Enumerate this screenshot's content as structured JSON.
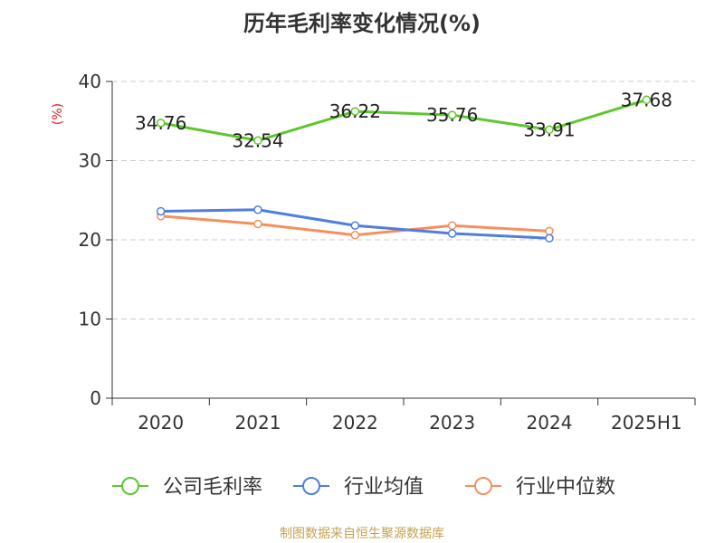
{
  "chart_data": {
    "type": "line",
    "title": "历年毛利率变化情况(%)",
    "ylabel": "(%)",
    "xlabel": "",
    "categories": [
      "2020",
      "2021",
      "2022",
      "2023",
      "2024",
      "2025H1"
    ],
    "ylim": [
      0,
      40
    ],
    "yticks": [
      0,
      10,
      20,
      30,
      40
    ],
    "grid": true,
    "legend_position": "bottom",
    "series": [
      {
        "name": "公司毛利率",
        "color": "#5dc72d",
        "values": [
          34.76,
          32.54,
          36.22,
          35.76,
          33.91,
          37.68
        ],
        "labels": [
          "34.76",
          "32.54",
          "36.22",
          "35.76",
          "33.91",
          "37.68"
        ],
        "show_labels": true
      },
      {
        "name": "行业均值",
        "color": "#4f7fdc",
        "values": [
          23.6,
          23.8,
          21.8,
          20.8,
          20.2,
          null
        ],
        "show_labels": false
      },
      {
        "name": "行业中位数",
        "color": "#f5905d",
        "values": [
          23.0,
          22.0,
          20.6,
          21.8,
          21.1,
          null
        ],
        "show_labels": false
      }
    ]
  },
  "footer": {
    "source": "制图数据来自恒生聚源数据库"
  }
}
